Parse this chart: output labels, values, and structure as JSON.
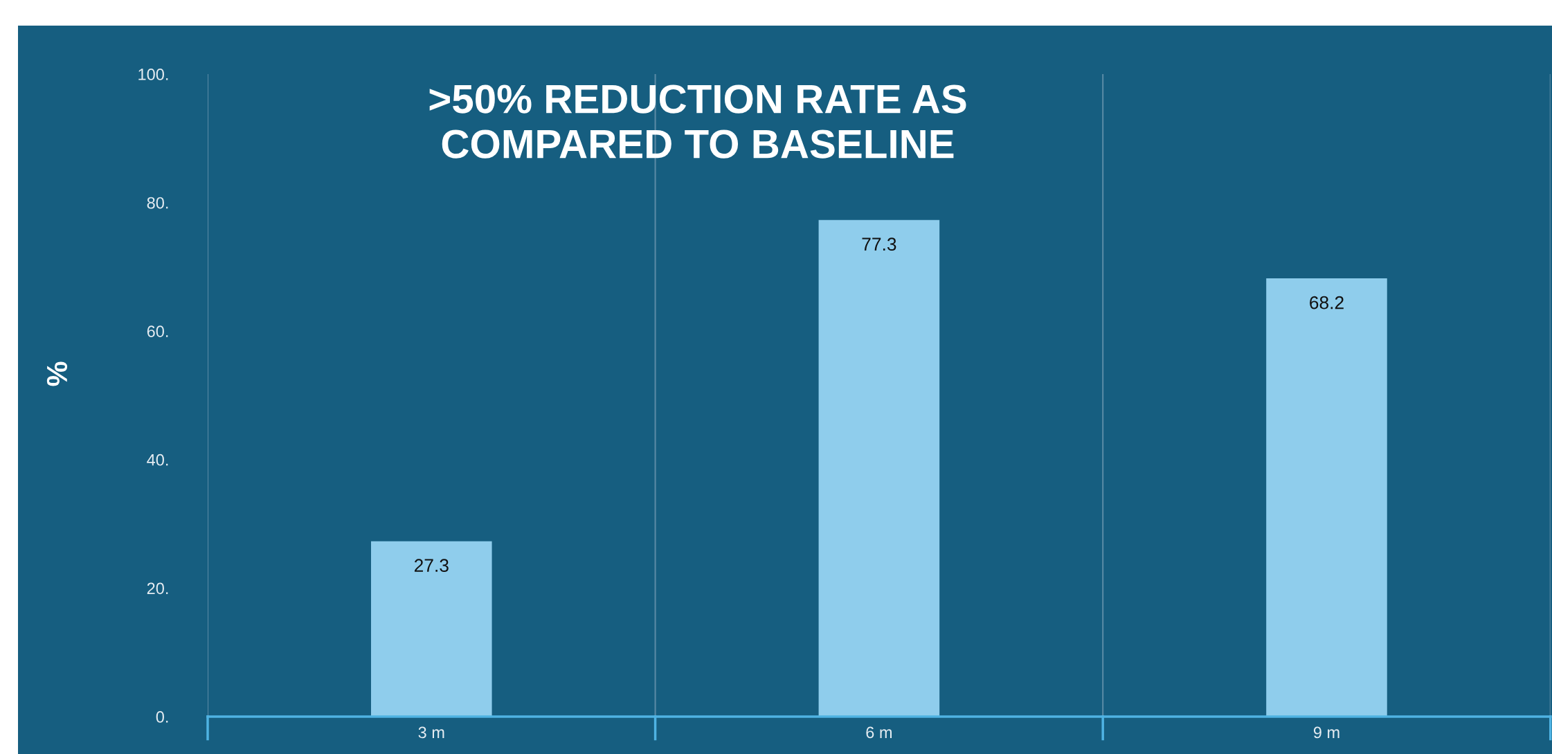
{
  "chart_data": {
    "type": "bar",
    "title": ">50% REDUCTION RATE AS\nCOMPARED TO BASELINE",
    "ylabel": "%",
    "categories": [
      "3 m",
      "6 m",
      "9 m"
    ],
    "values": [
      27.3,
      77.3,
      68.2
    ],
    "color": "#8fcdec",
    "ylim": [
      0,
      100
    ],
    "yticks": [
      {
        "value": 0,
        "label": "0."
      },
      {
        "value": 20,
        "label": "20."
      },
      {
        "value": 40,
        "label": "40."
      },
      {
        "value": 60,
        "label": "60."
      },
      {
        "value": 80,
        "label": "80."
      },
      {
        "value": 100,
        "label": "100."
      }
    ],
    "grid": "x",
    "data_labels": true
  }
}
